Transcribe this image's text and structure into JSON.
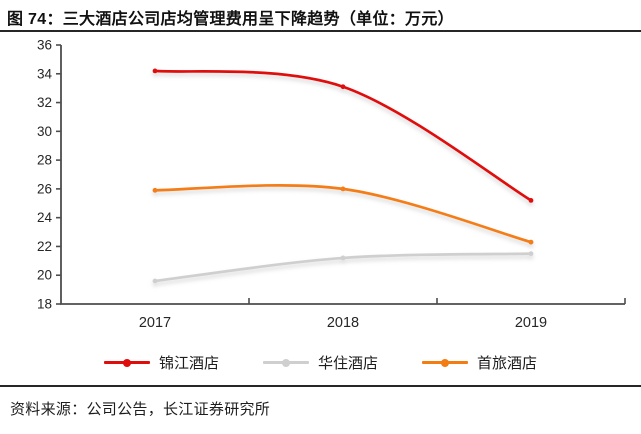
{
  "title": "图  74：三大酒店公司店均管理费用呈下降趋势（单位：万元）",
  "footer": {
    "source": "资料来源：公司公告，长江证券研究所"
  },
  "chart_data": {
    "type": "line",
    "categories": [
      "2017",
      "2018",
      "2019"
    ],
    "series": [
      {
        "name": "锦江酒店",
        "color": "#e00d0d",
        "values": [
          34.2,
          33.1,
          25.2
        ]
      },
      {
        "name": "华住酒店",
        "color": "#cfcfcf",
        "values": [
          19.6,
          21.2,
          21.5
        ]
      },
      {
        "name": "首旅酒店",
        "color": "#f47d13",
        "values": [
          25.9,
          26.0,
          22.3
        ]
      }
    ],
    "ylim": [
      18,
      36
    ],
    "ytick_step": 2,
    "grid": false,
    "legend_position": "bottom",
    "axis_color": "#4d4d4d",
    "label_color": "#262626"
  }
}
